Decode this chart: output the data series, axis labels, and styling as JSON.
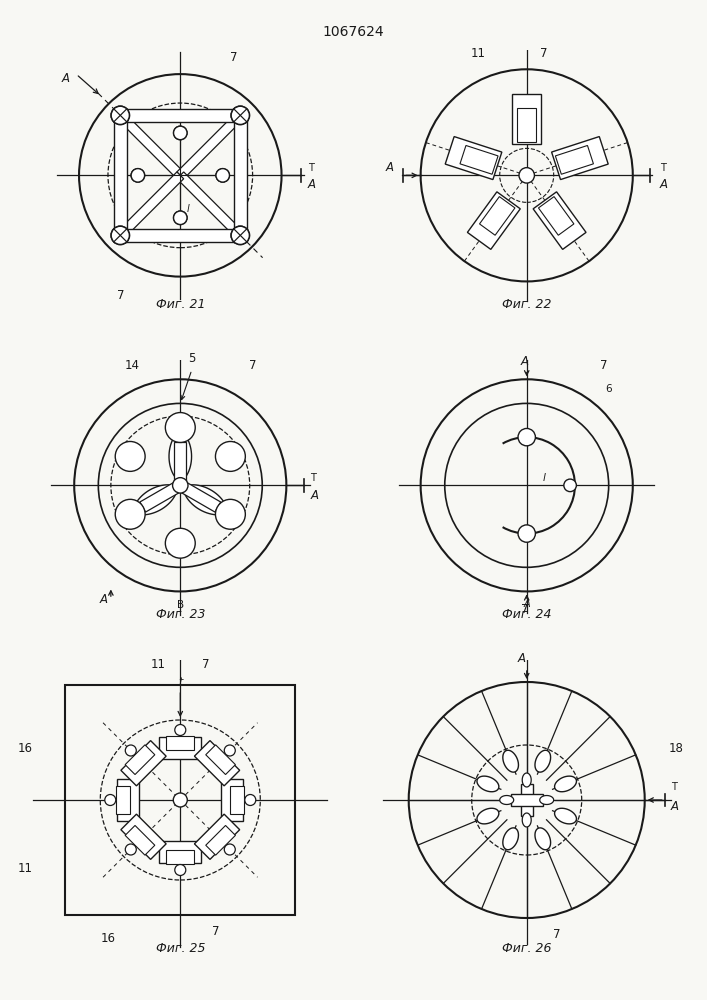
{
  "title": "1067624",
  "background": "#f8f8f4",
  "fig_labels": [
    "Фиг. 21",
    "Фиг. 22",
    "Фиг. 23",
    "Фиг. 24",
    "Фиг. 25",
    "Фиг. 26"
  ],
  "line_color": "#1a1a1a",
  "dashed_color": "#1a1a1a"
}
